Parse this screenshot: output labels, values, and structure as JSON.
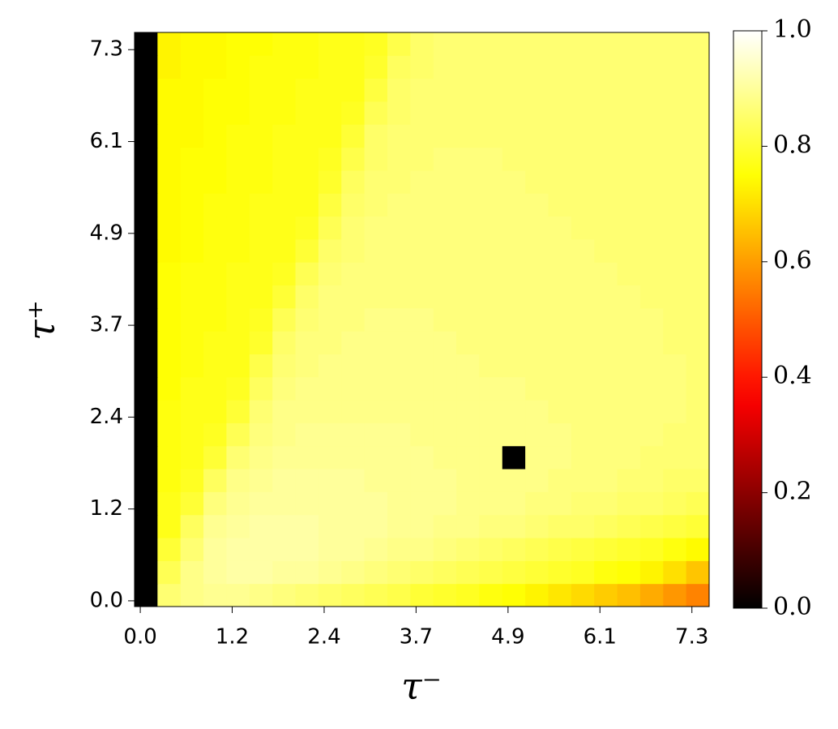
{
  "chart_data": {
    "type": "heatmap",
    "colormap": "hot",
    "x_label": "τ⁻",
    "y_label": "τ⁺",
    "x": [
      0,
      0.306,
      0.612,
      0.918,
      1.224,
      1.531,
      1.837,
      2.143,
      2.449,
      2.755,
      3.061,
      3.367,
      3.673,
      3.98,
      4.286,
      4.592,
      4.898,
      5.204,
      5.51,
      5.816,
      6.122,
      6.429,
      6.735,
      7.041,
      7.347
    ],
    "y": [
      0,
      0.306,
      0.612,
      0.918,
      1.224,
      1.531,
      1.837,
      2.143,
      2.449,
      2.755,
      3.061,
      3.367,
      3.673,
      3.98,
      4.286,
      4.592,
      4.898,
      5.204,
      5.51,
      5.816,
      6.122,
      6.429,
      6.735,
      7.041,
      7.347
    ],
    "xlim": [
      -0.0765,
      7.5765
    ],
    "ylim": [
      -0.0765,
      7.5765
    ],
    "xticks": [
      {
        "value": 0,
        "label": "0.0"
      },
      {
        "value": 1.224,
        "label": "1.2"
      },
      {
        "value": 2.449,
        "label": "2.4"
      },
      {
        "value": 3.673,
        "label": "3.7"
      },
      {
        "value": 4.898,
        "label": "4.9"
      },
      {
        "value": 6.122,
        "label": "6.1"
      },
      {
        "value": 7.347,
        "label": "7.3"
      }
    ],
    "yticks": [
      {
        "value": 0,
        "label": "0.0"
      },
      {
        "value": 1.224,
        "label": "1.2"
      },
      {
        "value": 2.449,
        "label": "2.4"
      },
      {
        "value": 3.673,
        "label": "3.7"
      },
      {
        "value": 4.898,
        "label": "4.9"
      },
      {
        "value": 6.122,
        "label": "6.1"
      },
      {
        "value": 7.347,
        "label": "7.3"
      }
    ],
    "colorbar_lim": [
      0,
      1
    ],
    "colorbar_ticks": [
      {
        "value": 0,
        "label": "0.0"
      },
      {
        "value": 0.2,
        "label": "0.2"
      },
      {
        "value": 0.4,
        "label": "0.4"
      },
      {
        "value": 0.6,
        "label": "0.6"
      },
      {
        "value": 0.8,
        "label": "0.8"
      },
      {
        "value": 1,
        "label": "1.0"
      }
    ],
    "values": [
      [
        0,
        0.86,
        0.88,
        0.89,
        0.89,
        0.88,
        0.87,
        0.86,
        0.85,
        0.84,
        0.83,
        0.82,
        0.8,
        0.79,
        0.78,
        0.76,
        0.75,
        0.73,
        0.71,
        0.69,
        0.67,
        0.65,
        0.62,
        0.59,
        0.56
      ],
      [
        0,
        0.83,
        0.88,
        0.9,
        0.91,
        0.91,
        0.9,
        0.9,
        0.89,
        0.88,
        0.87,
        0.86,
        0.85,
        0.84,
        0.83,
        0.82,
        0.81,
        0.8,
        0.79,
        0.78,
        0.76,
        0.75,
        0.73,
        0.7,
        0.66
      ],
      [
        0,
        0.8,
        0.86,
        0.9,
        0.91,
        0.91,
        0.91,
        0.91,
        0.9,
        0.9,
        0.89,
        0.88,
        0.88,
        0.87,
        0.86,
        0.85,
        0.84,
        0.83,
        0.82,
        0.81,
        0.8,
        0.79,
        0.78,
        0.76,
        0.74
      ],
      [
        0,
        0.77,
        0.84,
        0.89,
        0.9,
        0.91,
        0.91,
        0.91,
        0.9,
        0.9,
        0.9,
        0.89,
        0.89,
        0.88,
        0.88,
        0.87,
        0.87,
        0.86,
        0.85,
        0.85,
        0.84,
        0.83,
        0.82,
        0.81,
        0.8
      ],
      [
        0,
        0.77,
        0.8,
        0.87,
        0.89,
        0.9,
        0.9,
        0.9,
        0.9,
        0.9,
        0.9,
        0.89,
        0.89,
        0.89,
        0.88,
        0.88,
        0.88,
        0.87,
        0.87,
        0.86,
        0.86,
        0.85,
        0.85,
        0.84,
        0.83
      ],
      [
        0,
        0.76,
        0.78,
        0.84,
        0.88,
        0.89,
        0.9,
        0.9,
        0.9,
        0.9,
        0.89,
        0.89,
        0.89,
        0.89,
        0.88,
        0.88,
        0.88,
        0.88,
        0.87,
        0.87,
        0.87,
        0.86,
        0.86,
        0.85,
        0.85
      ],
      [
        0,
        0.76,
        0.77,
        0.8,
        0.86,
        0.88,
        0.89,
        0.89,
        0.89,
        0.89,
        0.89,
        0.89,
        0.89,
        0.88,
        0.88,
        0.88,
        0,
        0.88,
        0.88,
        0.87,
        0.87,
        0.87,
        0.86,
        0.86,
        0.86
      ],
      [
        0,
        0.76,
        0.77,
        0.78,
        0.83,
        0.87,
        0.88,
        0.89,
        0.89,
        0.89,
        0.89,
        0.89,
        0.88,
        0.88,
        0.88,
        0.88,
        0.88,
        0.88,
        0.88,
        0.87,
        0.87,
        0.87,
        0.87,
        0.86,
        0.86
      ],
      [
        0,
        0.76,
        0.77,
        0.77,
        0.8,
        0.86,
        0.88,
        0.88,
        0.88,
        0.88,
        0.88,
        0.88,
        0.88,
        0.88,
        0.88,
        0.88,
        0.88,
        0.88,
        0.87,
        0.87,
        0.87,
        0.87,
        0.87,
        0.87,
        0.86
      ],
      [
        0,
        0.75,
        0.77,
        0.77,
        0.78,
        0.84,
        0.87,
        0.88,
        0.88,
        0.88,
        0.88,
        0.88,
        0.88,
        0.88,
        0.88,
        0.88,
        0.88,
        0.87,
        0.87,
        0.87,
        0.87,
        0.87,
        0.87,
        0.87,
        0.86
      ],
      [
        0,
        0.75,
        0.76,
        0.77,
        0.77,
        0.82,
        0.86,
        0.87,
        0.88,
        0.88,
        0.88,
        0.88,
        0.88,
        0.88,
        0.88,
        0.87,
        0.87,
        0.87,
        0.87,
        0.87,
        0.87,
        0.87,
        0.87,
        0.87,
        0.86
      ],
      [
        0,
        0.75,
        0.76,
        0.77,
        0.77,
        0.79,
        0.85,
        0.87,
        0.87,
        0.88,
        0.88,
        0.88,
        0.88,
        0.88,
        0.87,
        0.87,
        0.87,
        0.87,
        0.87,
        0.87,
        0.87,
        0.87,
        0.87,
        0.86,
        0.86
      ],
      [
        0,
        0.75,
        0.76,
        0.76,
        0.77,
        0.78,
        0.83,
        0.86,
        0.87,
        0.87,
        0.88,
        0.88,
        0.88,
        0.87,
        0.87,
        0.87,
        0.87,
        0.87,
        0.87,
        0.87,
        0.87,
        0.87,
        0.87,
        0.86,
        0.86
      ],
      [
        0,
        0.75,
        0.76,
        0.76,
        0.77,
        0.77,
        0.8,
        0.85,
        0.87,
        0.87,
        0.87,
        0.87,
        0.87,
        0.87,
        0.87,
        0.87,
        0.87,
        0.87,
        0.87,
        0.87,
        0.87,
        0.87,
        0.86,
        0.86,
        0.86
      ],
      [
        0,
        0.75,
        0.76,
        0.76,
        0.77,
        0.77,
        0.78,
        0.83,
        0.86,
        0.87,
        0.87,
        0.87,
        0.87,
        0.87,
        0.87,
        0.87,
        0.87,
        0.87,
        0.87,
        0.87,
        0.87,
        0.86,
        0.86,
        0.86,
        0.86
      ],
      [
        0,
        0.74,
        0.75,
        0.76,
        0.76,
        0.77,
        0.77,
        0.8,
        0.85,
        0.86,
        0.87,
        0.87,
        0.87,
        0.87,
        0.87,
        0.87,
        0.87,
        0.87,
        0.87,
        0.87,
        0.86,
        0.86,
        0.86,
        0.86,
        0.86
      ],
      [
        0,
        0.74,
        0.75,
        0.76,
        0.76,
        0.77,
        0.77,
        0.78,
        0.83,
        0.86,
        0.87,
        0.87,
        0.87,
        0.87,
        0.87,
        0.87,
        0.87,
        0.87,
        0.87,
        0.86,
        0.86,
        0.86,
        0.86,
        0.86,
        0.86
      ],
      [
        0,
        0.74,
        0.75,
        0.76,
        0.76,
        0.77,
        0.77,
        0.77,
        0.81,
        0.85,
        0.86,
        0.87,
        0.87,
        0.87,
        0.87,
        0.87,
        0.87,
        0.87,
        0.86,
        0.86,
        0.86,
        0.86,
        0.86,
        0.86,
        0.86
      ],
      [
        0,
        0.74,
        0.75,
        0.75,
        0.76,
        0.76,
        0.77,
        0.77,
        0.79,
        0.84,
        0.86,
        0.86,
        0.87,
        0.87,
        0.87,
        0.87,
        0.87,
        0.86,
        0.86,
        0.86,
        0.86,
        0.86,
        0.86,
        0.86,
        0.86
      ],
      [
        0,
        0.74,
        0.75,
        0.75,
        0.76,
        0.76,
        0.77,
        0.77,
        0.78,
        0.82,
        0.85,
        0.86,
        0.86,
        0.87,
        0.87,
        0.87,
        0.86,
        0.86,
        0.86,
        0.86,
        0.86,
        0.86,
        0.86,
        0.86,
        0.86
      ],
      [
        0,
        0.74,
        0.74,
        0.75,
        0.76,
        0.76,
        0.77,
        0.77,
        0.77,
        0.8,
        0.85,
        0.86,
        0.86,
        0.86,
        0.86,
        0.86,
        0.86,
        0.86,
        0.86,
        0.86,
        0.86,
        0.86,
        0.86,
        0.86,
        0.86
      ],
      [
        0,
        0.74,
        0.74,
        0.75,
        0.75,
        0.76,
        0.76,
        0.77,
        0.77,
        0.78,
        0.83,
        0.85,
        0.86,
        0.86,
        0.86,
        0.86,
        0.86,
        0.86,
        0.86,
        0.86,
        0.86,
        0.86,
        0.86,
        0.86,
        0.86
      ],
      [
        0,
        0.74,
        0.74,
        0.75,
        0.75,
        0.76,
        0.76,
        0.77,
        0.77,
        0.77,
        0.81,
        0.85,
        0.86,
        0.86,
        0.86,
        0.86,
        0.86,
        0.86,
        0.86,
        0.86,
        0.86,
        0.86,
        0.86,
        0.86,
        0.86
      ],
      [
        0,
        0.73,
        0.74,
        0.74,
        0.75,
        0.76,
        0.76,
        0.76,
        0.77,
        0.77,
        0.79,
        0.84,
        0.85,
        0.86,
        0.86,
        0.86,
        0.86,
        0.86,
        0.86,
        0.86,
        0.86,
        0.86,
        0.86,
        0.86,
        0.86
      ],
      [
        0,
        0.73,
        0.74,
        0.74,
        0.75,
        0.75,
        0.76,
        0.76,
        0.77,
        0.77,
        0.78,
        0.82,
        0.85,
        0.86,
        0.86,
        0.86,
        0.86,
        0.86,
        0.86,
        0.86,
        0.86,
        0.86,
        0.86,
        0.86,
        0.86
      ]
    ]
  }
}
